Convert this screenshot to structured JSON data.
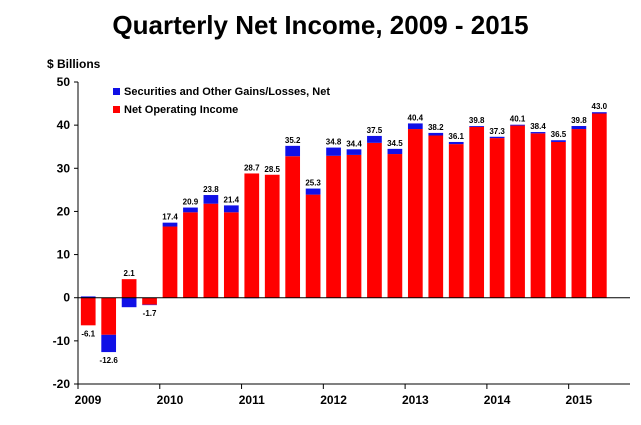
{
  "chart_data": {
    "type": "bar",
    "title": "Quarterly Net Income, 2009 - 2015",
    "ylabel": "$ Billions",
    "xlabel": "",
    "ylim": [
      -20,
      50
    ],
    "yticks": [
      -20,
      -10,
      0,
      10,
      20,
      30,
      40,
      50
    ],
    "stacked": true,
    "grid": false,
    "legend_position": "top-left",
    "x_tick_labels": [
      "2009",
      "2010",
      "2011",
      "2012",
      "2013",
      "2014",
      "2015"
    ],
    "categories": [
      "2009Q1",
      "2009Q2",
      "2009Q3",
      "2009Q4",
      "2010Q1",
      "2010Q2",
      "2010Q3",
      "2010Q4",
      "2011Q1",
      "2011Q2",
      "2011Q3",
      "2011Q4",
      "2012Q1",
      "2012Q2",
      "2012Q3",
      "2012Q4",
      "2013Q1",
      "2013Q2",
      "2013Q3",
      "2013Q4",
      "2014Q1",
      "2014Q2",
      "2014Q3",
      "2014Q4",
      "2015Q1",
      "2015Q2",
      "2015Q3"
    ],
    "totals": [
      -6.1,
      -12.6,
      2.1,
      -1.7,
      17.4,
      20.9,
      23.8,
      21.4,
      28.7,
      28.5,
      35.2,
      25.3,
      34.8,
      34.4,
      37.5,
      34.5,
      40.4,
      38.2,
      36.1,
      39.8,
      37.3,
      40.1,
      38.4,
      36.5,
      39.8,
      43.0,
      null
    ],
    "total_labels": [
      "-6.1",
      "-12.6",
      "2.1",
      "-1.7",
      "17.4",
      "20.9",
      "23.8",
      "21.4",
      "28.7",
      "28.5",
      "35.2",
      "25.3",
      "34.8",
      "34.4",
      "37.5",
      "34.5",
      "40.4",
      "38.2",
      "36.1",
      "39.8",
      "37.3",
      "40.1",
      "38.4",
      "36.5",
      "39.8",
      "43.0",
      ""
    ],
    "series": [
      {
        "name": "Securities and Other Gains/Losses, Net",
        "color": "#1010e6",
        "values": [
          0.3,
          -4.0,
          -2.2,
          -0.1,
          0.9,
          1.1,
          2.0,
          1.6,
          -0.1,
          0.0,
          2.4,
          1.4,
          1.9,
          1.3,
          1.6,
          1.2,
          1.3,
          0.6,
          0.5,
          0.2,
          0.3,
          0.2,
          0.3,
          0.4,
          0.7,
          0.3,
          0.0
        ]
      },
      {
        "name": "Net Operating Income",
        "color": "#ff0000",
        "values": [
          -6.4,
          -8.6,
          4.3,
          -1.6,
          16.5,
          19.8,
          21.8,
          19.8,
          28.8,
          28.5,
          32.8,
          23.9,
          32.9,
          33.1,
          35.9,
          33.3,
          39.1,
          37.6,
          35.6,
          39.6,
          37.0,
          39.9,
          38.1,
          36.1,
          39.1,
          42.7,
          0.0
        ]
      }
    ]
  }
}
